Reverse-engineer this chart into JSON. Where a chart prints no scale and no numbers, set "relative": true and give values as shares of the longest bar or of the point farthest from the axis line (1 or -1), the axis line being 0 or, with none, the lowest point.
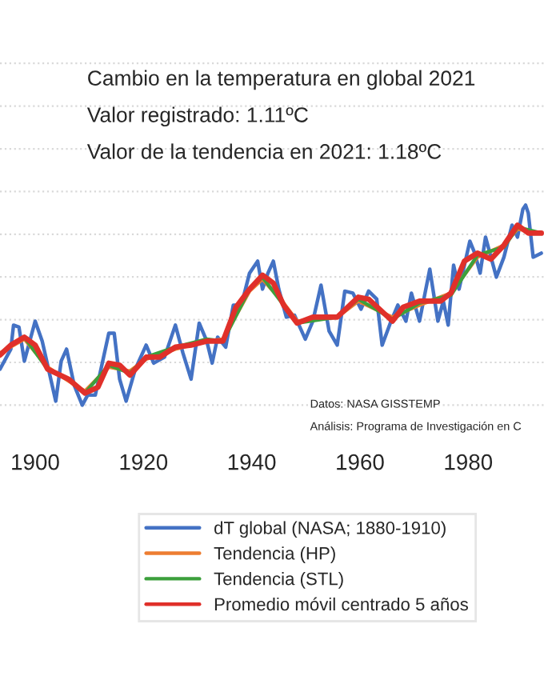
{
  "chart_data": {
    "type": "line",
    "title": "Cambio en la temperatura en global 2021",
    "annotations": [
      "Valor registrado: 1.11ºC",
      "Valor de la tendencia en 2021: 1.18ºC",
      "Datos: NASA GISSTEMP",
      "Análisis: Programa de Investigación en C"
    ],
    "relative": true,
    "xlim": [
      1893.5,
      1994
    ],
    "xticks": [
      1900,
      1920,
      1940,
      1960,
      1980
    ],
    "grid": true,
    "legend": "bottom",
    "series": [
      {
        "name": "dT global (NASA; 1880-1910)",
        "color": "#4472c4",
        "x": [
          1893.5,
          1895.5,
          1896,
          1897,
          1898,
          1900,
          1901.3,
          1903.8,
          1904.8,
          1905.8,
          1907.2,
          1908.7,
          1909.7,
          1911.1,
          1913.6,
          1914.6,
          1915.6,
          1916.8,
          1918.5,
          1920.5,
          1921.9,
          1923.9,
          1925.9,
          1927.3,
          1928.8,
          1930.3,
          1931.7,
          1932.7,
          1933.7,
          1935.2,
          1936.6,
          1938.1,
          1939.6,
          1941.1,
          1942,
          1943,
          1944,
          1945,
          1946.4,
          1947.9,
          1949.9,
          1951.3,
          1952.8,
          1954.3,
          1955.8,
          1957.2,
          1958.7,
          1960.2,
          1961.6,
          1963.1,
          1964.1,
          1965.6,
          1967,
          1968.5,
          1969.5,
          1971,
          1972.9,
          1974.4,
          1975.4,
          1976.3,
          1977.3,
          1978.3,
          1980.3,
          1981.2,
          1982.2,
          1983.2,
          1985.2,
          1986.6,
          1988.1,
          1989.1,
          1990.1,
          1990.6,
          1991.1,
          1992,
          1993.5
        ],
        "values": [
          0.18,
          0.28,
          0.4,
          0.39,
          0.22,
          0.42,
          0.32,
          0.02,
          0.22,
          0.28,
          0.1,
          0.0,
          0.05,
          0.05,
          0.36,
          0.36,
          0.13,
          0.02,
          0.18,
          0.3,
          0.21,
          0.24,
          0.4,
          0.26,
          0.13,
          0.41,
          0.32,
          0.21,
          0.34,
          0.29,
          0.5,
          0.5,
          0.66,
          0.72,
          0.58,
          0.66,
          0.72,
          0.58,
          0.44,
          0.45,
          0.33,
          0.42,
          0.6,
          0.37,
          0.3,
          0.57,
          0.56,
          0.48,
          0.57,
          0.53,
          0.3,
          0.41,
          0.5,
          0.42,
          0.56,
          0.42,
          0.68,
          0.42,
          0.52,
          0.4,
          0.7,
          0.58,
          0.82,
          0.76,
          0.66,
          0.84,
          0.64,
          0.74,
          0.9,
          0.84,
          0.98,
          1.0,
          0.96,
          0.74,
          0.76
        ]
      },
      {
        "name": "Tendencia (HP)",
        "color": "#ed7d31",
        "x": [
          1893.5,
          1898,
          1902.3,
          1906.2,
          1909.2,
          1913.6,
          1917.5,
          1920.5,
          1925.9,
          1931.7,
          1934.7,
          1939.6,
          1942,
          1945.9,
          1948.4,
          1955.8,
          1959.7,
          1966,
          1971,
          1976.8,
          1981.7,
          1986.6,
          1989.1,
          1993.5
        ],
        "values": [
          0.26,
          0.33,
          0.19,
          0.12,
          0.07,
          0.19,
          0.17,
          0.23,
          0.28,
          0.32,
          0.33,
          0.57,
          0.63,
          0.51,
          0.42,
          0.44,
          0.52,
          0.44,
          0.5,
          0.56,
          0.74,
          0.8,
          0.88,
          0.86
        ]
      },
      {
        "name": "Tendencia (STL)",
        "color": "#3ca03c",
        "x": [
          1898,
          1902.3,
          1906.2,
          1909.2,
          1913.6,
          1917.5,
          1920.5,
          1925.9,
          1931.7,
          1934.7,
          1939.6,
          1942,
          1945.9,
          1948.4,
          1955.8,
          1959.7,
          1966,
          1971,
          1976.8,
          1981.7,
          1986.6,
          1989.1,
          1993.5
        ],
        "values": [
          0.34,
          0.18,
          0.13,
          0.06,
          0.2,
          0.16,
          0.24,
          0.29,
          0.33,
          0.32,
          0.58,
          0.64,
          0.5,
          0.41,
          0.44,
          0.53,
          0.43,
          0.51,
          0.55,
          0.75,
          0.79,
          0.89,
          0.86
        ]
      },
      {
        "name": "Promedio móvil centrado 5 años",
        "color": "#e0302a",
        "x": [
          1893.5,
          1895.5,
          1898,
          1900,
          1902.3,
          1906.2,
          1909.2,
          1911.6,
          1913.6,
          1915.6,
          1917.5,
          1920.5,
          1923,
          1925.9,
          1928.8,
          1931.7,
          1934.7,
          1937.1,
          1939.6,
          1942,
          1944,
          1945.9,
          1948.4,
          1951.3,
          1955.8,
          1959.7,
          1961.6,
          1966,
          1968,
          1971,
          1974.9,
          1976.8,
          1979.3,
          1981.7,
          1984.2,
          1986.6,
          1989.1,
          1991.1,
          1993.5
        ],
        "values": [
          0.25,
          0.3,
          0.34,
          0.3,
          0.18,
          0.13,
          0.06,
          0.09,
          0.21,
          0.2,
          0.15,
          0.24,
          0.24,
          0.29,
          0.3,
          0.32,
          0.32,
          0.49,
          0.58,
          0.65,
          0.61,
          0.5,
          0.41,
          0.44,
          0.44,
          0.54,
          0.53,
          0.42,
          0.49,
          0.52,
          0.52,
          0.56,
          0.72,
          0.76,
          0.73,
          0.8,
          0.9,
          0.86,
          0.86
        ]
      }
    ]
  }
}
